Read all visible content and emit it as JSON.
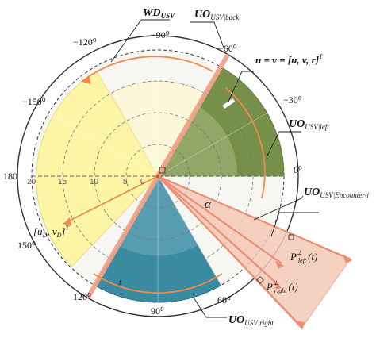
{
  "angle_labels": {
    "a_m90": "−90⁰",
    "a_m60": "−60⁰",
    "a_m30": "−30⁰",
    "a_0": "0⁰",
    "a_m120": "−120⁰",
    "a_m150": "−150⁰",
    "a_180": "180",
    "a_150": "150⁰",
    "a_120": "120⁰",
    "a_90": "90⁰",
    "a_60": "60⁰"
  },
  "radial_ticks": [
    "20",
    "15",
    "10",
    "5",
    "0"
  ],
  "labels": {
    "wd_main": "WD",
    "wd_sub": "USV",
    "uo_main": "UO",
    "back_sub": "USV|back",
    "left_sub": "USV|left",
    "right_sub": "USV|right",
    "enc_sub": "USV|Encounter-i",
    "u_eq": "u = ν = [u, v, r]",
    "u_eq_T": "T",
    "ud_vd": "[u",
    "ud_sub": "D",
    "ud_mid": ", v",
    "vd_sub": "D",
    "ud_end": "]",
    "ud_T": "T",
    "alpha": "α",
    "p_left": "P",
    "p_left_sup": "⊥",
    "p_left_sub": "left",
    "p_left_t": "(t)",
    "p_right": "P",
    "p_right_sup": "⊥",
    "p_right_sub": "right",
    "p_right_t": "(t)",
    "small_t": "t"
  },
  "colors": {
    "yellow_sector": "#fdf5a6",
    "green_sector": "#76904a",
    "blue_sector": "#3a8aa0",
    "pink_sector": "#f4c9b8",
    "accent_orange": "#f08a4b"
  }
}
